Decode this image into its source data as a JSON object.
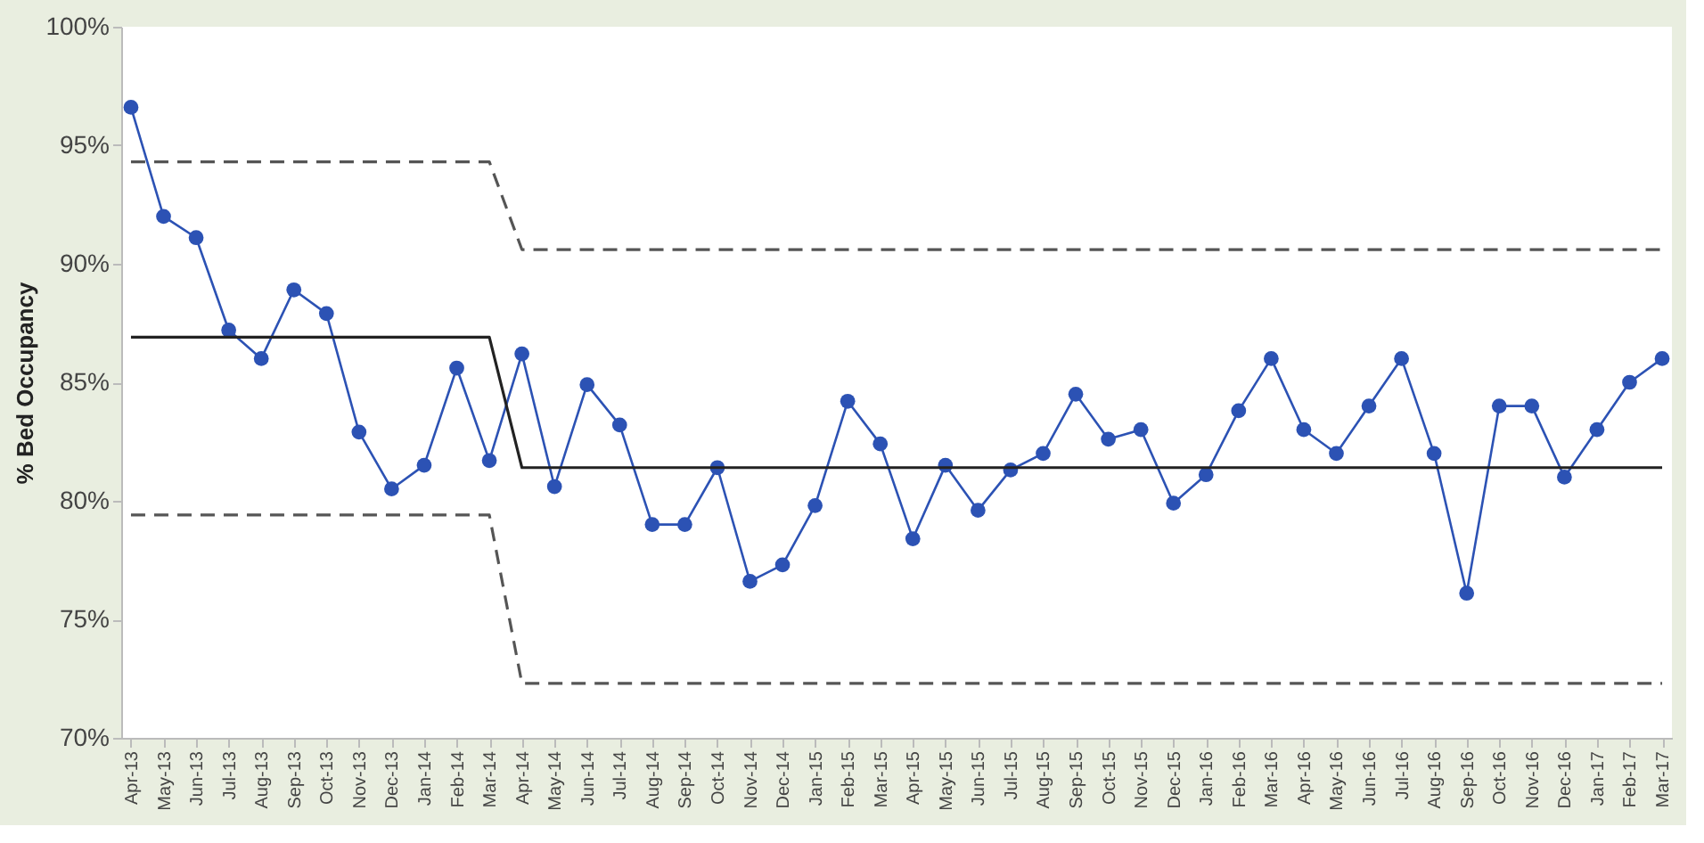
{
  "chart_data": {
    "type": "line",
    "ylabel": "% Bed Occupancy",
    "categories": [
      "Apr-13",
      "May-13",
      "Jun-13",
      "Jul-13",
      "Aug-13",
      "Sep-13",
      "Oct-13",
      "Nov-13",
      "Dec-13",
      "Jan-14",
      "Feb-14",
      "Mar-14",
      "Apr-14",
      "May-14",
      "Jun-14",
      "Jul-14",
      "Aug-14",
      "Sep-14",
      "Oct-14",
      "Nov-14",
      "Dec-14",
      "Jan-15",
      "Feb-15",
      "Mar-15",
      "Apr-15",
      "May-15",
      "Jun-15",
      "Jul-15",
      "Aug-15",
      "Sep-15",
      "Oct-15",
      "Nov-15",
      "Dec-15",
      "Jan-16",
      "Feb-16",
      "Mar-16",
      "Apr-16",
      "May-16",
      "Jun-16",
      "Jul-16",
      "Aug-16",
      "Sep-16",
      "Oct-16",
      "Nov-16",
      "Dec-16",
      "Jan-17",
      "Feb-17",
      "Mar-17"
    ],
    "series": [
      {
        "color": "#2c52b4",
        "marker": "circle",
        "line_style": "solid",
        "values": [
          96.6,
          92.0,
          91.1,
          87.2,
          86.0,
          88.9,
          87.9,
          82.9,
          80.5,
          81.5,
          85.6,
          81.7,
          86.2,
          80.6,
          84.9,
          83.2,
          79.0,
          79.0,
          81.4,
          76.6,
          77.3,
          79.8,
          84.2,
          82.4,
          78.4,
          81.5,
          79.6,
          81.3,
          82.0,
          84.5,
          82.6,
          83.0,
          79.9,
          81.1,
          83.8,
          86.0,
          83.0,
          82.0,
          84.0,
          86.0,
          82.0,
          76.1,
          84.0,
          84.0,
          81.0,
          83.0,
          85.0,
          86.0
        ]
      },
      {
        "color": "#222222",
        "marker": "none",
        "line_style": "solid",
        "values": [
          86.9,
          86.9,
          86.9,
          86.9,
          86.9,
          86.9,
          86.9,
          86.9,
          86.9,
          86.9,
          86.9,
          86.9,
          81.4,
          81.4,
          81.4,
          81.4,
          81.4,
          81.4,
          81.4,
          81.4,
          81.4,
          81.4,
          81.4,
          81.4,
          81.4,
          81.4,
          81.4,
          81.4,
          81.4,
          81.4,
          81.4,
          81.4,
          81.4,
          81.4,
          81.4,
          81.4,
          81.4,
          81.4,
          81.4,
          81.4,
          81.4,
          81.4,
          81.4,
          81.4,
          81.4,
          81.4,
          81.4,
          81.4
        ]
      },
      {
        "color": "#555555",
        "marker": "none",
        "line_style": "dashed",
        "values": [
          94.3,
          94.3,
          94.3,
          94.3,
          94.3,
          94.3,
          94.3,
          94.3,
          94.3,
          94.3,
          94.3,
          94.3,
          90.6,
          90.6,
          90.6,
          90.6,
          90.6,
          90.6,
          90.6,
          90.6,
          90.6,
          90.6,
          90.6,
          90.6,
          90.6,
          90.6,
          90.6,
          90.6,
          90.6,
          90.6,
          90.6,
          90.6,
          90.6,
          90.6,
          90.6,
          90.6,
          90.6,
          90.6,
          90.6,
          90.6,
          90.6,
          90.6,
          90.6,
          90.6,
          90.6,
          90.6,
          90.6,
          90.6
        ]
      },
      {
        "color": "#555555",
        "marker": "none",
        "line_style": "dashed",
        "values": [
          79.4,
          79.4,
          79.4,
          79.4,
          79.4,
          79.4,
          79.4,
          79.4,
          79.4,
          79.4,
          79.4,
          79.4,
          72.3,
          72.3,
          72.3,
          72.3,
          72.3,
          72.3,
          72.3,
          72.3,
          72.3,
          72.3,
          72.3,
          72.3,
          72.3,
          72.3,
          72.3,
          72.3,
          72.3,
          72.3,
          72.3,
          72.3,
          72.3,
          72.3,
          72.3,
          72.3,
          72.3,
          72.3,
          72.3,
          72.3,
          72.3,
          72.3,
          72.3,
          72.3,
          72.3,
          72.3,
          72.3,
          72.3
        ]
      }
    ],
    "ylim": [
      70,
      100
    ],
    "yticks": [
      {
        "value": 70,
        "label": "70%"
      },
      {
        "value": 75,
        "label": "75%"
      },
      {
        "value": 80,
        "label": "80%"
      },
      {
        "value": 85,
        "label": "85%"
      },
      {
        "value": 90,
        "label": "90%"
      },
      {
        "value": 95,
        "label": "95%"
      },
      {
        "value": 100,
        "label": "100%"
      }
    ],
    "grid": false
  }
}
